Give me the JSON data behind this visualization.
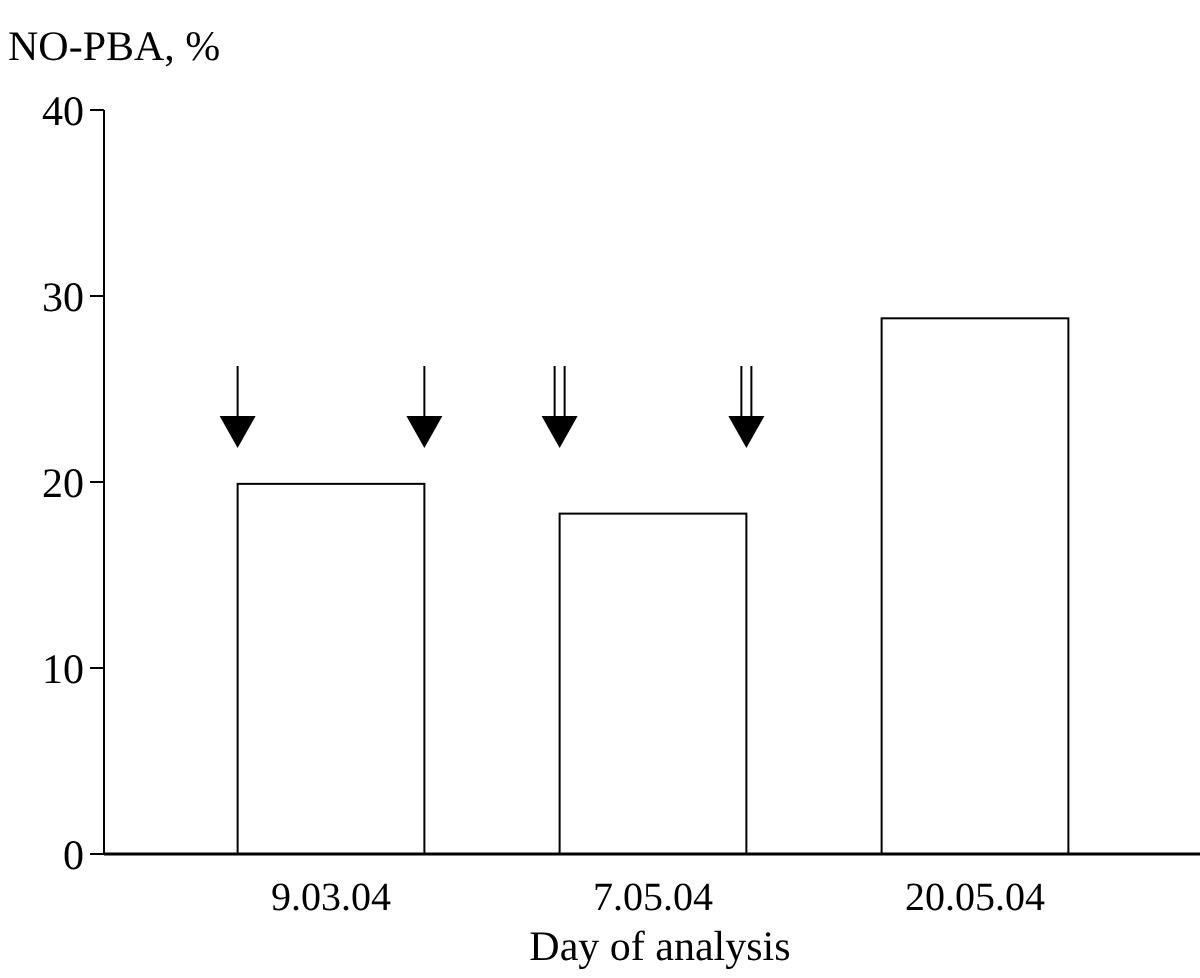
{
  "chart_data": {
    "type": "bar",
    "ylabel": "NO-PBA, %",
    "xlabel": "Day of analysis",
    "categories": [
      "9.03.04",
      "7.05.04",
      "20.05.04"
    ],
    "values": [
      19.9,
      18.3,
      28.8
    ],
    "color": "#ffffff",
    "ylim": [
      0,
      40
    ],
    "yticks": [
      0,
      10,
      20,
      30,
      40
    ],
    "grid": false
  }
}
